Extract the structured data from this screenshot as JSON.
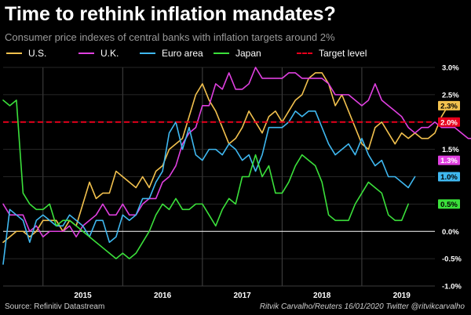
{
  "title": "Time to rethink inflation mandates?",
  "subtitle": "Consumer price indexes of central banks with inflation targets around 2%",
  "source": "Source: Refinitiv Datastream",
  "credit": "Ritvik Carvalho/Reuters 16/01/2020 Twitter @ritvikcarvalho",
  "chart_data": {
    "type": "line",
    "x_start": "2014-07",
    "x_end": "2019-12",
    "ylim": [
      -1.0,
      3.0
    ],
    "y_ticks": [
      -1.0,
      -0.5,
      0.0,
      0.5,
      1.0,
      1.5,
      2.0,
      2.5,
      3.0
    ],
    "y_tick_labels": [
      "-1.0%",
      "-0.5%",
      "0.0%",
      "0.5%",
      "1.0%",
      "1.5%",
      "2.0%",
      "2.5%",
      "3.0%"
    ],
    "x_tick_labels": [
      "2015",
      "2016",
      "2017",
      "2018",
      "2019"
    ],
    "grid": true,
    "legend_position": "top",
    "target_level": {
      "name": "Target level",
      "value": 2.0,
      "label": "2.0%",
      "color": "#e8001c"
    },
    "series": [
      {
        "name": "U.S.",
        "color": "#f2c14e",
        "end_label": "2.3%",
        "values": [
          -0.2,
          -0.1,
          0.0,
          0.0,
          -0.1,
          0.0,
          0.2,
          0.2,
          0.2,
          0.0,
          0.2,
          0.1,
          0.5,
          0.9,
          0.6,
          0.7,
          0.7,
          1.1,
          1.0,
          0.9,
          0.8,
          1.0,
          0.8,
          1.1,
          1.2,
          1.5,
          1.6,
          1.7,
          2.1,
          2.5,
          2.7,
          2.4,
          2.2,
          1.9,
          1.6,
          1.7,
          1.9,
          2.2,
          2.0,
          1.8,
          2.1,
          2.2,
          2.0,
          2.2,
          2.4,
          2.5,
          2.8,
          2.9,
          2.9,
          2.7,
          2.3,
          2.5,
          2.2,
          1.9,
          1.6,
          1.5,
          1.9,
          2.0,
          1.8,
          1.6,
          1.8,
          1.7,
          1.8,
          1.7,
          1.7,
          1.8,
          2.1,
          2.3
        ]
      },
      {
        "name": "U.K.",
        "color": "#e040e0",
        "end_label": "1.3%",
        "values": [
          0.5,
          0.3,
          0.3,
          0.3,
          0.0,
          0.1,
          -0.1,
          0.0,
          0.0,
          0.0,
          0.1,
          -0.1,
          0.1,
          0.2,
          0.3,
          0.5,
          0.3,
          0.3,
          0.5,
          0.3,
          0.3,
          0.5,
          0.6,
          0.6,
          0.9,
          1.0,
          1.2,
          1.6,
          1.8,
          1.9,
          2.3,
          2.3,
          2.7,
          2.6,
          2.9,
          2.6,
          2.6,
          2.7,
          3.0,
          2.8,
          2.8,
          2.8,
          2.8,
          2.9,
          2.9,
          2.8,
          2.8,
          2.8,
          2.8,
          2.7,
          2.5,
          2.5,
          2.5,
          2.4,
          2.3,
          2.4,
          2.7,
          2.4,
          2.3,
          2.2,
          2.1,
          1.9,
          1.8,
          1.9,
          1.9,
          2.0,
          1.9,
          1.9,
          1.9,
          1.8,
          1.7,
          1.7,
          1.5,
          1.5,
          1.3
        ]
      },
      {
        "name": "Euro area",
        "color": "#3fb8f0",
        "end_label": "1.0%",
        "values": [
          -0.6,
          0.4,
          0.3,
          0.2,
          -0.2,
          0.2,
          0.3,
          0.2,
          0.1,
          0.1,
          0.3,
          0.2,
          0.1,
          -0.1,
          0.2,
          0.2,
          -0.2,
          -0.1,
          0.3,
          0.2,
          0.3,
          0.6,
          0.6,
          0.9,
          1.1,
          1.8,
          2.0,
          1.5,
          1.9,
          1.4,
          1.3,
          1.5,
          1.5,
          1.4,
          1.6,
          1.5,
          1.3,
          1.4,
          1.1,
          1.4,
          1.9,
          1.9,
          1.9,
          2.0,
          2.2,
          2.1,
          2.2,
          2.2,
          1.9,
          1.6,
          1.4,
          1.5,
          1.6,
          1.4,
          1.7,
          1.4,
          1.2,
          1.3,
          1.0,
          1.0,
          0.9,
          0.8,
          1.0
        ]
      },
      {
        "name": "Japan",
        "color": "#3be03b",
        "end_label": "0.5%",
        "values": [
          2.4,
          2.3,
          2.4,
          0.7,
          0.5,
          0.4,
          0.4,
          0.5,
          0.1,
          0.2,
          0.2,
          0.1,
          0.0,
          -0.1,
          -0.2,
          -0.3,
          -0.4,
          -0.5,
          -0.4,
          -0.5,
          -0.4,
          -0.2,
          0.0,
          0.3,
          0.5,
          0.4,
          0.6,
          0.4,
          0.4,
          0.5,
          0.5,
          0.3,
          0.1,
          0.4,
          0.6,
          0.5,
          1.0,
          1.0,
          1.4,
          1.0,
          1.2,
          0.7,
          0.7,
          0.9,
          1.2,
          1.4,
          1.3,
          1.2,
          0.9,
          0.3,
          0.2,
          0.2,
          0.2,
          0.5,
          0.7,
          0.9,
          0.8,
          0.7,
          0.3,
          0.2,
          0.2,
          0.5
        ]
      }
    ],
    "end_labels": [
      "2.3%",
      "2.0%",
      "1.3%",
      "1.0%",
      "0.5%"
    ]
  }
}
